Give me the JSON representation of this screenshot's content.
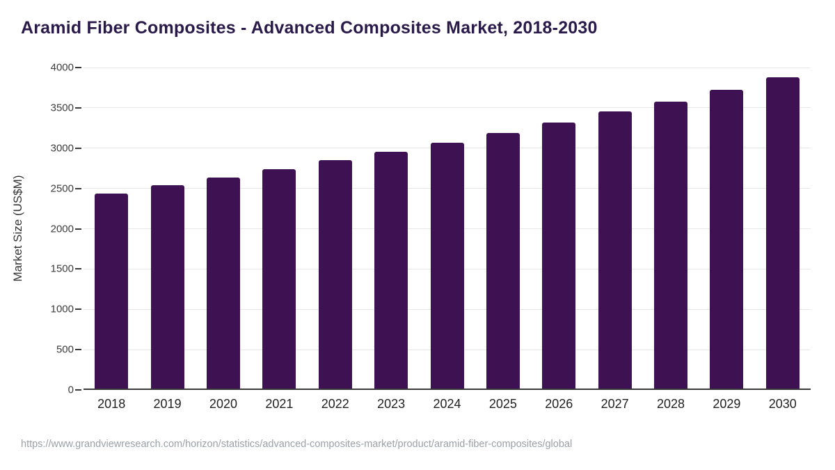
{
  "title": "Aramid Fiber Composites - Advanced Composites Market, 2018-2030",
  "source_url": "https://www.grandviewresearch.com/horizon/statistics/advanced-composites-market/product/aramid-fiber-composites/global",
  "colors": {
    "title": "#2a1a4a",
    "bar": "#3d1152",
    "grid": "#e7e7e7",
    "axis": "#3a3a3a",
    "tick_label": "#3c3c3c",
    "x_label": "#1f1f1f",
    "source": "#9aa0a6",
    "background": "#ffffff"
  },
  "chart_data": {
    "type": "bar",
    "title": "Aramid Fiber Composites - Advanced Composites Market, 2018-2030",
    "categories": [
      "2018",
      "2019",
      "2020",
      "2021",
      "2022",
      "2023",
      "2024",
      "2025",
      "2026",
      "2027",
      "2028",
      "2029",
      "2030"
    ],
    "values": [
      2420,
      2520,
      2620,
      2720,
      2830,
      2940,
      3050,
      3170,
      3300,
      3440,
      3560,
      3710,
      3860
    ],
    "xlabel": "",
    "ylabel": "Market Size (US$M)",
    "ylim": [
      0,
      4000
    ],
    "yticks": [
      0,
      500,
      1000,
      1500,
      2000,
      2500,
      3000,
      3500,
      4000
    ],
    "grid": true,
    "legend": false,
    "bar_color": "#3d1152"
  }
}
